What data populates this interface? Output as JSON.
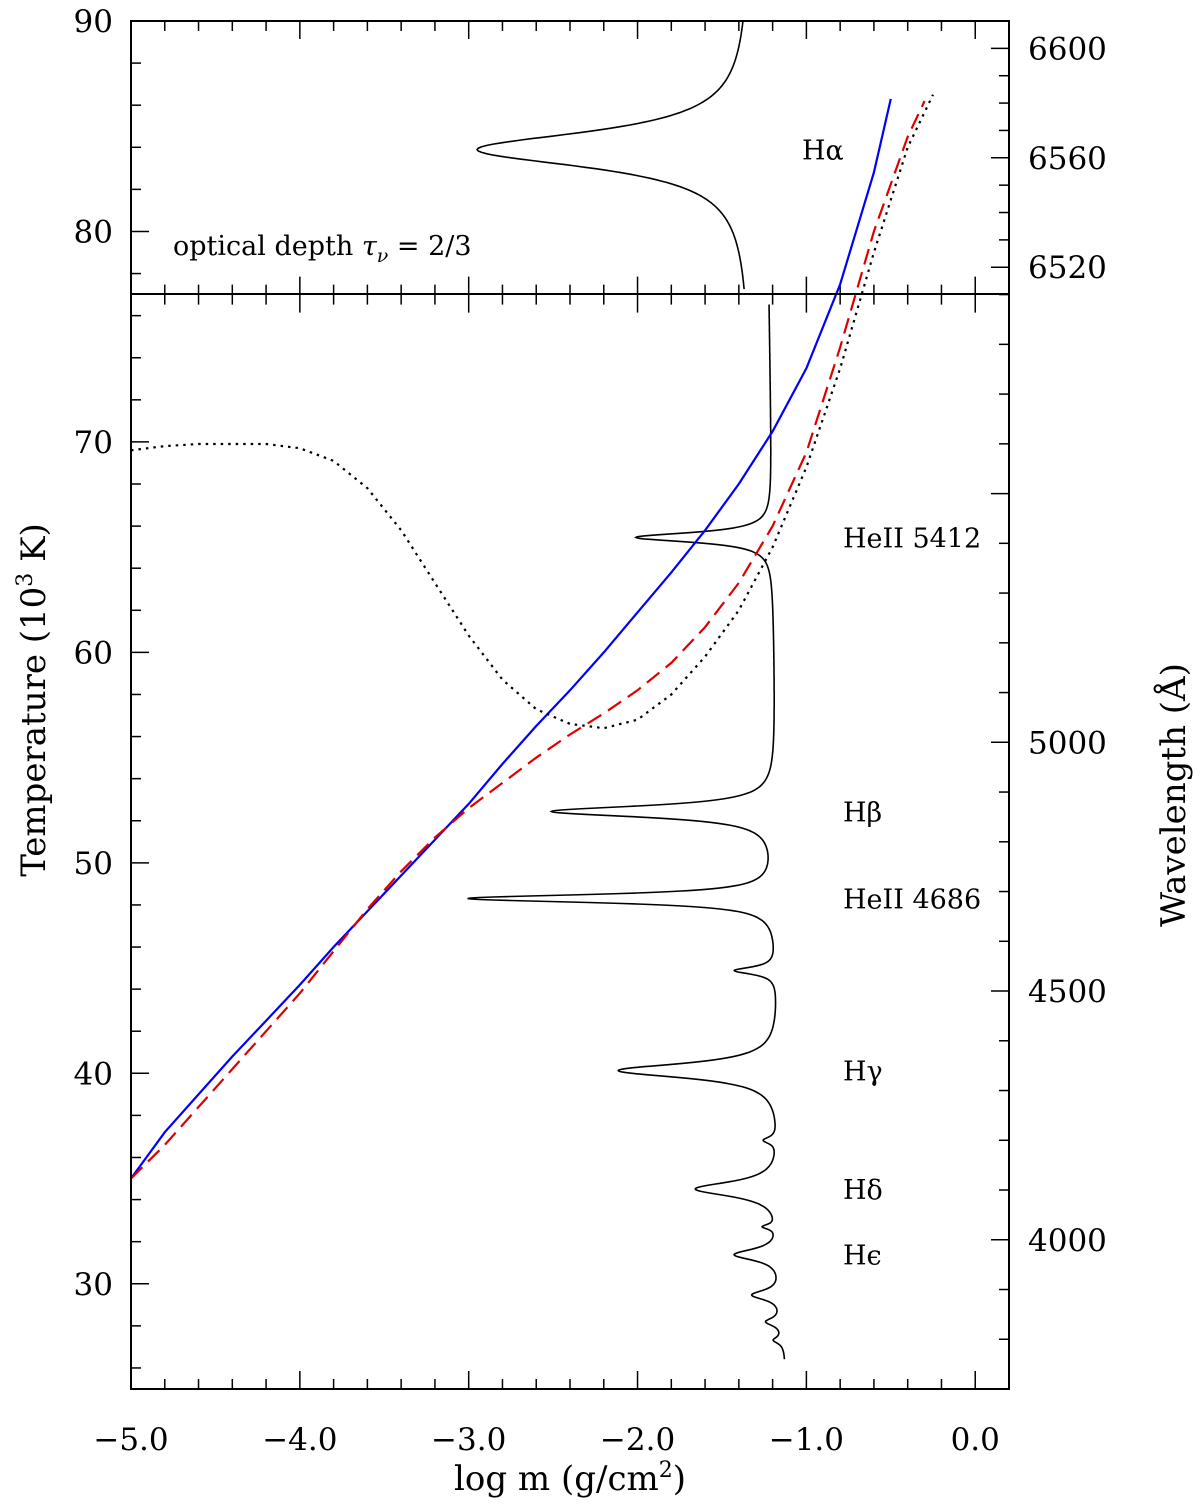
{
  "chart_data": {
    "type": "line",
    "x_axis": {
      "label_main": "log m (g/cm",
      "label_sup": "2",
      "label_end": ")",
      "range": [
        -5.0,
        0.2
      ],
      "ticks": [
        -5.0,
        -4.0,
        -3.0,
        -2.0,
        -1.0,
        0.0
      ],
      "tick_labels": [
        "−5.0",
        "−4.0",
        "−3.0",
        "−2.0",
        "−1.0",
        "0.0"
      ]
    },
    "y_axis_left": {
      "label_pre": "Temperature (10",
      "label_sup": "3",
      "label_post": " K)",
      "range": [
        25,
        90
      ],
      "ticks": [
        30,
        40,
        50,
        60,
        70,
        80,
        90
      ],
      "tick_labels": [
        "30",
        "40",
        "50",
        "60",
        "70",
        "80",
        "90"
      ]
    },
    "y_axis_right_lower": {
      "label": "Wavelength (Å)",
      "range": [
        3700,
        5900
      ],
      "ticks": [
        4000,
        4500,
        5000
      ],
      "tick_labels": [
        "4000",
        "4500",
        "5000"
      ]
    },
    "y_axis_right_upper": {
      "range": [
        6510,
        6610
      ],
      "ticks": [
        6520,
        6560,
        6600
      ],
      "tick_labels": [
        "6520",
        "6560",
        "6600"
      ]
    },
    "panel_split_temperature": 77,
    "annotation": "optical depth τν = 2/3",
    "annotation_parts": {
      "pre": "optical depth ",
      "tau": "τ",
      "nu": "ν",
      "post": " = 2/3"
    },
    "line_labels": [
      {
        "text": "Hα",
        "wavelength": 6563
      },
      {
        "text": "HeII 5412",
        "wavelength": 5412
      },
      {
        "text": "Hβ",
        "wavelength": 4861
      },
      {
        "text": "HeII 4686",
        "wavelength": 4686
      },
      {
        "text": "Hγ",
        "wavelength": 4340
      },
      {
        "text": "Hδ",
        "wavelength": 4102
      },
      {
        "text": "Hϵ",
        "wavelength": 3970
      }
    ],
    "series": [
      {
        "style": "solid",
        "color": "#0000ff",
        "x": [
          -5.0,
          -4.8,
          -4.6,
          -4.4,
          -4.2,
          -4.0,
          -3.8,
          -3.6,
          -3.4,
          -3.2,
          -3.0,
          -2.8,
          -2.6,
          -2.4,
          -2.2,
          -2.0,
          -1.8,
          -1.6,
          -1.4,
          -1.2,
          -1.0,
          -0.8,
          -0.6,
          -0.5
        ],
        "y": [
          35.0,
          37.2,
          39.0,
          40.8,
          42.5,
          44.2,
          46.0,
          47.7,
          49.4,
          51.1,
          52.8,
          54.7,
          56.5,
          58.2,
          60.0,
          61.9,
          63.8,
          65.8,
          68.0,
          70.5,
          73.5,
          77.5,
          82.8,
          86.3
        ]
      },
      {
        "style": "dashed",
        "color": "#dd0000",
        "x": [
          -5.0,
          -4.8,
          -4.6,
          -4.4,
          -4.2,
          -4.0,
          -3.8,
          -3.6,
          -3.4,
          -3.2,
          -3.0,
          -2.8,
          -2.6,
          -2.4,
          -2.2,
          -2.0,
          -1.8,
          -1.6,
          -1.4,
          -1.2,
          -1.0,
          -0.8,
          -0.6,
          -0.4,
          -0.3
        ],
        "y": [
          35.0,
          36.6,
          38.4,
          40.2,
          42.0,
          43.8,
          45.8,
          47.8,
          49.6,
          51.2,
          52.6,
          53.8,
          55.0,
          56.1,
          57.1,
          58.2,
          59.5,
          61.2,
          63.3,
          66.0,
          69.5,
          74.5,
          80.0,
          84.5,
          86.2
        ]
      },
      {
        "style": "dotted",
        "color": "#000000",
        "x": [
          -5.0,
          -4.8,
          -4.6,
          -4.4,
          -4.2,
          -4.0,
          -3.8,
          -3.6,
          -3.4,
          -3.2,
          -3.0,
          -2.8,
          -2.6,
          -2.4,
          -2.2,
          -2.0,
          -1.8,
          -1.6,
          -1.4,
          -1.2,
          -1.0,
          -0.8,
          -0.6,
          -0.4,
          -0.25
        ],
        "y": [
          69.6,
          69.8,
          69.9,
          69.9,
          69.9,
          69.7,
          69.1,
          67.8,
          65.8,
          63.3,
          60.8,
          58.7,
          57.3,
          56.6,
          56.4,
          56.8,
          58.0,
          59.8,
          62.0,
          65.0,
          68.8,
          73.5,
          79.0,
          84.0,
          86.5
        ]
      }
    ],
    "spectrum": {
      "style": "solid",
      "color": "#000000",
      "continuum_logm": -1.12,
      "lines_lower": [
        {
          "wavelength": 5412,
          "depth_logm": -1.93,
          "width": 12
        },
        {
          "wavelength": 4861,
          "depth_logm": -2.45,
          "width": 14
        },
        {
          "wavelength": 4686,
          "depth_logm": -2.95,
          "width": 10
        },
        {
          "wavelength": 4541,
          "depth_logm": -1.37,
          "width": 9
        },
        {
          "wavelength": 4340,
          "depth_logm": -2.08,
          "width": 18
        },
        {
          "wavelength": 4200,
          "depth_logm": -1.2,
          "width": 8
        },
        {
          "wavelength": 4102,
          "depth_logm": -1.63,
          "width": 18
        },
        {
          "wavelength": 4026,
          "depth_logm": -1.2,
          "width": 6
        },
        {
          "wavelength": 3970,
          "depth_logm": -1.4,
          "width": 14
        },
        {
          "wavelength": 3889,
          "depth_logm": -1.3,
          "width": 12
        },
        {
          "wavelength": 3835,
          "depth_logm": -1.22,
          "width": 10
        },
        {
          "wavelength": 3798,
          "depth_logm": -1.18,
          "width": 8
        }
      ],
      "line_upper": {
        "wavelength": 6563,
        "depth_logm": -2.95,
        "width": 8,
        "continuum_logm": -1.33
      }
    }
  }
}
